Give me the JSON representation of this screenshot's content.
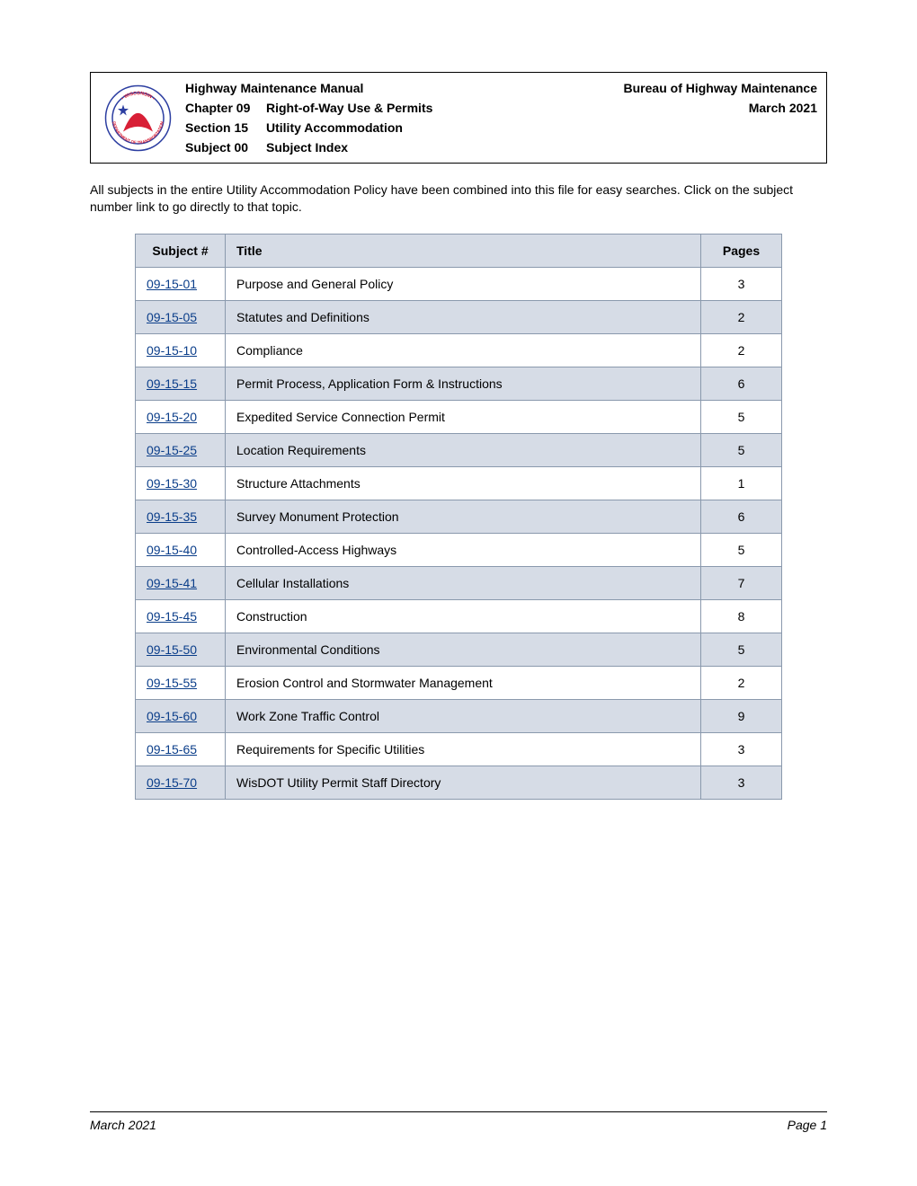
{
  "header": {
    "manual_title": "Highway Maintenance Manual",
    "bureau": "Bureau of Highway Maintenance",
    "chapter_label": "Chapter 09",
    "chapter_value": "Right-of-Way Use & Permits",
    "date": "March 2021",
    "section_label": "Section 15",
    "section_value": "Utility Accommodation",
    "subject_label": "Subject 00",
    "subject_value": "Subject Index"
  },
  "intro_text": "All subjects in the entire Utility Accommodation Policy have been combined into this file for easy searches. Click on the subject number link to go directly to that topic.",
  "table": {
    "columns": {
      "subject": "Subject #",
      "title": "Title",
      "pages": "Pages"
    },
    "header_bg": "#d6dce6",
    "border_color": "#8a99ad",
    "link_color": "#0b3e8a",
    "rows": [
      {
        "subject": "09-15-01",
        "title": "Purpose and General Policy",
        "pages": "3",
        "shaded": false
      },
      {
        "subject": "09-15-05",
        "title": "Statutes and Definitions",
        "pages": "2",
        "shaded": true
      },
      {
        "subject": "09-15-10",
        "title": "Compliance",
        "pages": "2",
        "shaded": false
      },
      {
        "subject": "09-15-15",
        "title": "Permit Process, Application Form & Instructions",
        "pages": "6",
        "shaded": true
      },
      {
        "subject": "09-15-20",
        "title": "Expedited Service Connection Permit",
        "pages": "5",
        "shaded": false
      },
      {
        "subject": "09-15-25",
        "title": "Location Requirements",
        "pages": "5",
        "shaded": true
      },
      {
        "subject": "09-15-30",
        "title": "Structure Attachments",
        "pages": "1",
        "shaded": false
      },
      {
        "subject": "09-15-35",
        "title": "Survey Monument Protection",
        "pages": "6",
        "shaded": true
      },
      {
        "subject": "09-15-40",
        "title": "Controlled-Access Highways",
        "pages": "5",
        "shaded": false
      },
      {
        "subject": "09-15-41",
        "title": "Cellular Installations",
        "pages": "7",
        "shaded": true
      },
      {
        "subject": "09-15-45",
        "title": "Construction",
        "pages": "8",
        "shaded": false
      },
      {
        "subject": "09-15-50",
        "title": "Environmental Conditions",
        "pages": "5",
        "shaded": true
      },
      {
        "subject": "09-15-55",
        "title": "Erosion Control and Stormwater Management",
        "pages": "2",
        "shaded": false
      },
      {
        "subject": "09-15-60",
        "title": "Work Zone Traffic Control",
        "pages": "9",
        "shaded": true
      },
      {
        "subject": "09-15-65",
        "title": "Requirements for Specific Utilities",
        "pages": "3",
        "shaded": false
      },
      {
        "subject": "09-15-70",
        "title": "WisDOT Utility Permit Staff Directory",
        "pages": "3",
        "shaded": true
      }
    ]
  },
  "footer": {
    "left": "March 2021",
    "right": "Page 1"
  },
  "logo": {
    "outer_text": "WISCONSIN DEPARTMENT OF TRANSPORTATION",
    "ring_color": "#2c3ea1",
    "star_color": "#2c3ea1",
    "shape_color": "#d81f36"
  }
}
